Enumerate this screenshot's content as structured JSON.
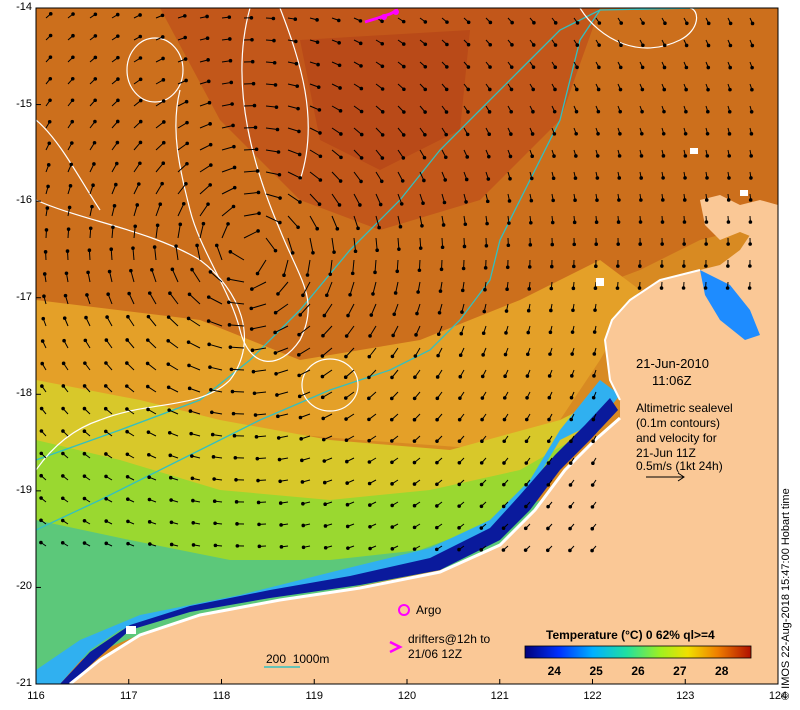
{
  "map": {
    "lon_ticks": [
      "116",
      "117",
      "118",
      "119",
      "120",
      "121",
      "122",
      "123",
      "124"
    ],
    "lat_ticks": [
      "-14",
      "-15",
      "-16",
      "-17",
      "-18",
      "-19",
      "-20",
      "-21"
    ],
    "extent": {
      "lon": [
        116,
        124
      ],
      "lat": [
        -21,
        -14
      ]
    }
  },
  "annotations": {
    "date": "21-Jun-2010",
    "time": "11:06Z",
    "alt_line1": "Altimetric sealevel",
    "alt_line2": "(0.1m contours)",
    "alt_line3": "and velocity for",
    "alt_line4": "21-Jun 11Z",
    "scale_label": "0.5m/s (1kt 24h)"
  },
  "legend": {
    "argo_label": "Argo",
    "drifters_line1": "drifters@12h to",
    "drifters_line2": "21/06 12Z",
    "isobath_label": "200  1000m",
    "colorbar_title": "Temperature (°C) 0 62% ql>=4",
    "colorbar_ticks": [
      "24",
      "25",
      "26",
      "27",
      "28"
    ],
    "colorbar_range": [
      23.3,
      28.7
    ]
  },
  "credit": "© IMOS 22-Aug-2018 15:47:00 Hobart time",
  "colors": {
    "land": "#fac896",
    "warm": "#c0551a",
    "mid": "#e8a51e",
    "cool": "#8fd82a",
    "cold": "#1e8cff",
    "coldest": "#0a1a9c",
    "argo": "#ff00ff",
    "isobath": "#33c0c0",
    "contour": "#ffffff"
  }
}
